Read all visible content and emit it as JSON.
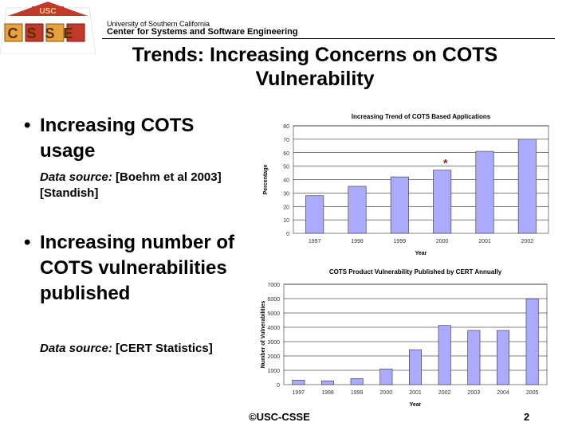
{
  "header": {
    "logo_top": "USC",
    "logo_bottom": "CSSE",
    "university": "University of Southern California",
    "center": "Center for Systems and Software Engineering"
  },
  "title": "Trends: Increasing Concerns on COTS Vulnerability",
  "bullets": [
    {
      "glyph": "•",
      "text": "Increasing COTS usage",
      "source_label": "Data source:",
      "source_text": " [Boehm et al 2003][Standish]"
    },
    {
      "glyph": "•",
      "text": "Increasing number of COTS vulnerabilities published",
      "source_label": "Data source:",
      "source_text": " [CERT Statistics]"
    }
  ],
  "chart_data": [
    {
      "type": "bar",
      "title": "Increasing Trend of COTS Based Applications",
      "xlabel": "Year",
      "ylabel": "Percentage",
      "categories": [
        "1997",
        "1998",
        "1999",
        "2000",
        "2001",
        "2002"
      ],
      "values": [
        28,
        35,
        42,
        47,
        61,
        70
      ],
      "ylim": [
        0,
        80
      ],
      "yticks": [
        0,
        10,
        20,
        30,
        40,
        50,
        60,
        70,
        80
      ],
      "annotation": {
        "category": "2000",
        "text": "*"
      },
      "bar_color": "#aaaaff",
      "grid": true
    },
    {
      "type": "bar",
      "title": "COTS Product Vulnerability Published by CERT Annually",
      "xlabel": "Year",
      "ylabel": "Number of Vulnerabilities",
      "categories": [
        "1997",
        "1998",
        "1999",
        "2000",
        "2001",
        "2002",
        "2003",
        "2004",
        "2005"
      ],
      "values": [
        311,
        262,
        417,
        1090,
        2437,
        4129,
        3784,
        3780,
        5990
      ],
      "ylim": [
        0,
        7000
      ],
      "yticks": [
        0,
        1000,
        2000,
        3000,
        4000,
        5000,
        6000,
        7000
      ],
      "bar_color": "#aaaaff",
      "grid": true
    }
  ],
  "footer": {
    "copyright": "©USC-CSSE",
    "page_number": "2"
  },
  "colors": {
    "logo_red": "#c0392b",
    "logo_gold": "#e6a23c",
    "bar_fill": "#aaaaff",
    "annotation": "#8b1a1a"
  }
}
